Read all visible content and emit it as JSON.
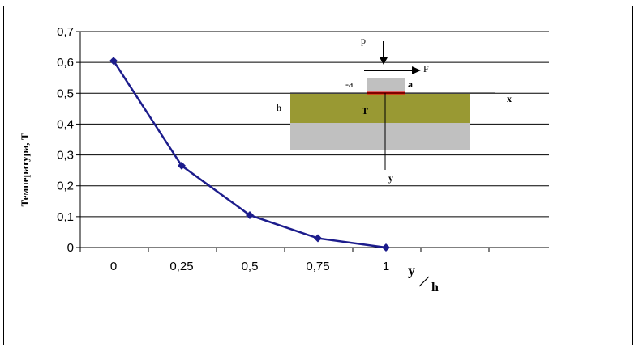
{
  "chart_data": {
    "type": "line",
    "ylabel": "Температура, Т",
    "xlabel_num": "y",
    "xlabel_den": "h",
    "x": [
      0,
      0.25,
      0.5,
      0.75,
      1
    ],
    "x_tick_labels": [
      "0",
      "0,25",
      "0,5",
      "0,75",
      "1"
    ],
    "y_tick_labels": [
      "0",
      "0,1",
      "0,2",
      "0,3",
      "0,4",
      "0,5",
      "0,6",
      "0,7"
    ],
    "ylim": [
      0,
      0.7
    ],
    "series": [
      {
        "values": [
          0.605,
          0.265,
          0.105,
          0.03,
          0.0
        ]
      }
    ],
    "line_color": "#1c1c8c",
    "grid": "horizontal",
    "inset": {
      "label_p": "p",
      "label_F": "F",
      "label_minus_a": "-a",
      "label_a": "a",
      "label_x": "x",
      "label_h": "h",
      "label_T": "T",
      "label_y": "y",
      "layer_color": "#999933",
      "base_color": "#c0c0c0",
      "contact_color": "#ff0000"
    }
  }
}
